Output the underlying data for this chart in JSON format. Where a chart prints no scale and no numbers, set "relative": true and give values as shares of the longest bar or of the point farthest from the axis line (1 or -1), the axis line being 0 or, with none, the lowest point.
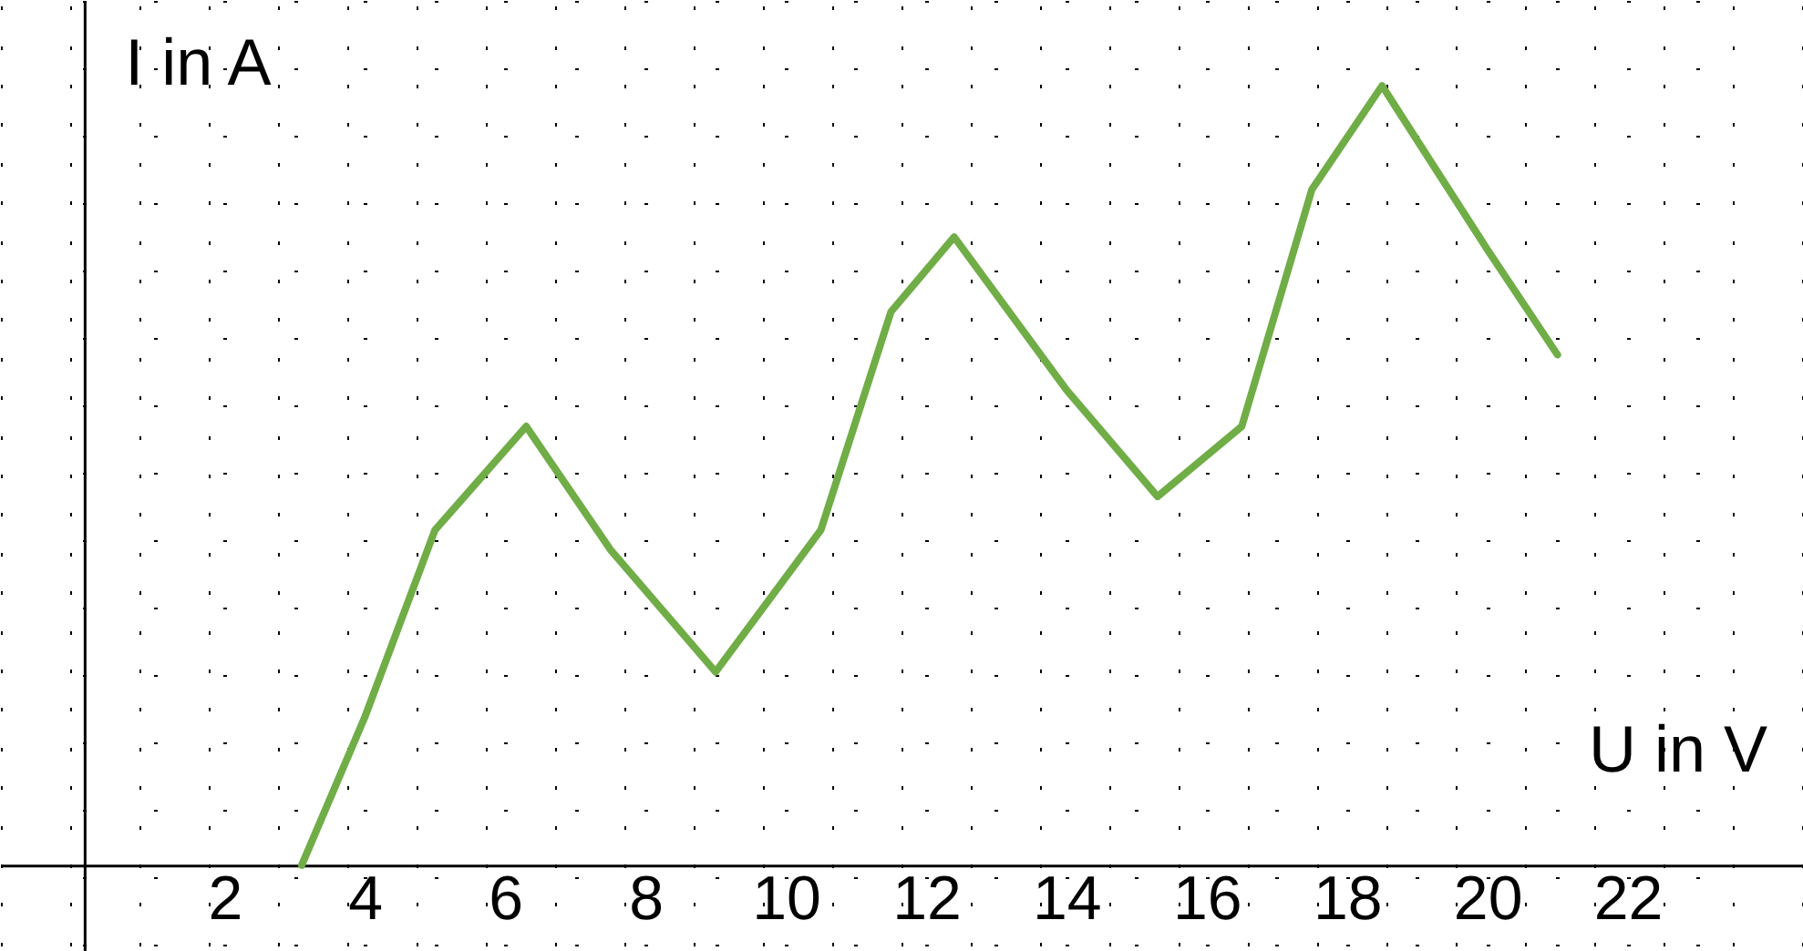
{
  "chart_data": {
    "type": "line",
    "relative": true,
    "xlabel": "U in V",
    "ylabel": "I in A",
    "x": [
      3.1,
      4,
      5,
      6.3,
      7.5,
      9.0,
      10.5,
      11.5,
      12.4,
      14,
      15.3,
      16.5,
      17.5,
      18.5,
      20,
      21.0
    ],
    "series": [
      {
        "color": "#70ad47",
        "values": [
          0,
          0.19,
          0.43,
          0.563,
          0.405,
          0.248,
          0.43,
          0.71,
          0.806,
          0.61,
          0.473,
          0.563,
          0.867,
          1,
          0.79,
          0.655
        ]
      }
    ],
    "xlim": [
      -1.2,
      24.5
    ],
    "xticks": [
      {
        "value": 0,
        "label": null
      },
      {
        "value": 1,
        "label": null
      },
      2,
      {
        "value": 3,
        "label": null
      },
      4,
      {
        "value": 5,
        "label": null
      },
      6,
      {
        "value": 7,
        "label": null
      },
      8,
      {
        "value": 9,
        "label": null
      },
      10,
      {
        "value": 11,
        "label": null
      },
      12,
      {
        "value": 13,
        "label": null
      },
      14,
      {
        "value": 15,
        "label": null
      },
      16,
      {
        "value": 17,
        "label": null
      },
      18,
      {
        "value": 19,
        "label": null
      },
      20,
      {
        "value": 21,
        "label": null
      },
      22,
      {
        "value": 23,
        "label": null
      }
    ],
    "grid": true,
    "marker": "none",
    "line_style": "solid"
  }
}
